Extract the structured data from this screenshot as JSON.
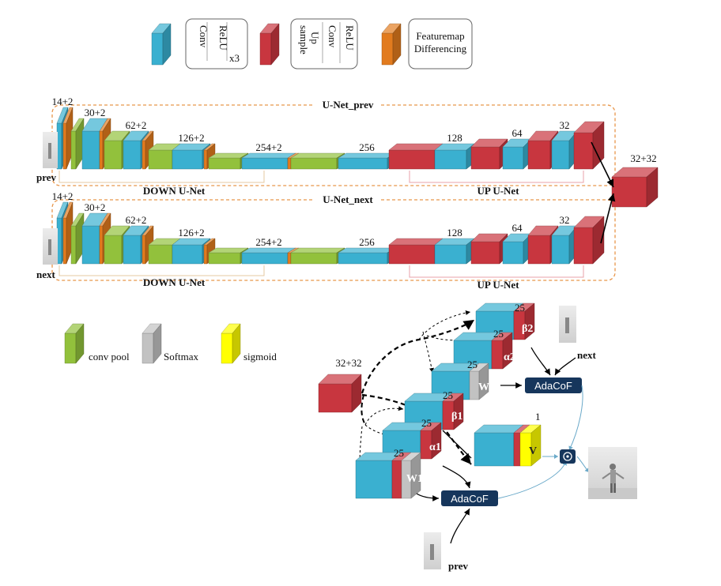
{
  "legend": {
    "conv_relu": {
      "conv": "Conv",
      "relu": "ReLU",
      "times": "x3"
    },
    "upsample": {
      "up": "Up",
      "sample": "sample",
      "conv": "Conv",
      "relu": "ReLU"
    },
    "featuremap": {
      "line1": "Featuremap",
      "line2": "Differencing"
    },
    "conv_pool": "conv pool",
    "softmax": "Softmax",
    "sigmoid": "sigmoid"
  },
  "unet_prev": {
    "title": "U-Net_prev",
    "input_label": "prev",
    "down_label": "DOWN U-Net",
    "up_label": "UP U-Net",
    "channels": [
      "14+2",
      "30+2",
      "62+2",
      "126+2",
      "254+2",
      "256",
      "128",
      "64",
      "32"
    ]
  },
  "unet_next": {
    "title": "U-Net_next",
    "input_label": "next",
    "down_label": "DOWN U-Net",
    "up_label": "UP U-Net",
    "channels": [
      "14+2",
      "30+2",
      "62+2",
      "126+2",
      "254+2",
      "256",
      "128",
      "64",
      "32"
    ]
  },
  "concat_top": "32+32",
  "head": {
    "concat": "32+32",
    "channel_25": "25",
    "one": "1",
    "w1": "W1",
    "w2": "W2",
    "alpha1": "α1",
    "alpha2": "α2",
    "beta1": "β1",
    "beta2": "β2",
    "v": "V",
    "adacof": "AdaCoF",
    "next_label": "next",
    "prev_label": "prev",
    "dot_symbol": "⊙"
  },
  "colors": {
    "blue": "#3ab0d0",
    "red": "#c8363f",
    "green": "#92c13c",
    "orange": "#e27b1e",
    "gray": "#c2c2c2",
    "yellow": "#ffff00",
    "navy": "#16365c",
    "dash": "#e8964a"
  }
}
